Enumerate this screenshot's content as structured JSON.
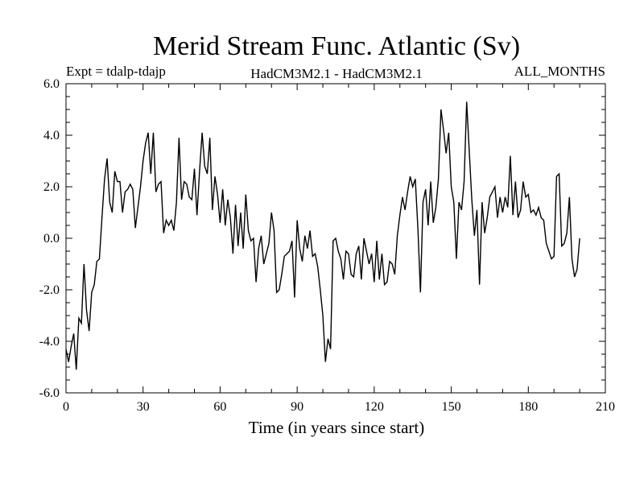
{
  "chart_data": {
    "type": "line",
    "title": "Merid Stream Func. Atlantic (Sv)",
    "subtitle_left": "Expt = tdalp-tdajp",
    "subtitle_center": "HadCM3M2.1 - HadCM3M2.1",
    "subtitle_right": "ALL_MONTHS",
    "xlabel": "Time (in years since start)",
    "ylabel": "",
    "xlim": [
      0,
      210
    ],
    "ylim": [
      -6,
      6
    ],
    "x_ticks": [
      0,
      30,
      60,
      90,
      120,
      150,
      180,
      210
    ],
    "y_ticks": [
      -6,
      -4,
      -2,
      0,
      2,
      4,
      6
    ],
    "y_tick_labels": [
      "-6.0",
      "-4.0",
      "-2.0",
      "0.0",
      "2.0",
      "4.0",
      "6.0"
    ],
    "grid": false,
    "series": [
      {
        "name": "",
        "color": "#000000",
        "x": [
          0,
          1,
          2,
          3,
          4,
          5,
          6,
          7,
          8,
          9,
          10,
          11,
          12,
          13,
          14,
          15,
          16,
          17,
          18,
          19,
          20,
          21,
          22,
          23,
          24,
          25,
          26,
          27,
          28,
          29,
          30,
          31,
          32,
          33,
          34,
          35,
          36,
          37,
          38,
          39,
          40,
          41,
          42,
          43,
          44,
          45,
          46,
          47,
          48,
          49,
          50,
          51,
          52,
          53,
          54,
          55,
          56,
          57,
          58,
          59,
          60,
          61,
          62,
          63,
          64,
          65,
          66,
          67,
          68,
          69,
          70,
          71,
          72,
          73,
          74,
          75,
          76,
          77,
          78,
          79,
          80,
          81,
          82,
          83,
          84,
          85,
          86,
          87,
          88,
          89,
          90,
          91,
          92,
          93,
          94,
          95,
          96,
          97,
          98,
          99,
          100,
          101,
          102,
          103,
          104,
          105,
          106,
          107,
          108,
          109,
          110,
          111,
          112,
          113,
          114,
          115,
          116,
          117,
          118,
          119,
          120,
          121,
          122,
          123,
          124,
          125,
          126,
          127,
          128,
          129,
          130,
          131,
          132,
          133,
          134,
          135,
          136,
          137,
          138,
          139,
          140,
          141,
          142,
          143,
          144,
          145,
          146,
          147,
          148,
          149,
          150,
          151,
          152,
          153,
          154,
          155,
          156,
          157,
          158,
          159,
          160,
          161,
          162,
          163,
          164,
          165,
          166,
          167,
          168,
          169,
          170,
          171,
          172,
          173,
          174,
          175,
          176,
          177,
          178,
          179,
          180,
          181,
          182,
          183,
          184,
          185,
          186,
          187,
          188,
          189,
          190,
          191,
          192,
          193,
          194,
          195,
          196,
          197,
          198,
          199,
          200
        ],
        "y": [
          -4.3,
          -4.8,
          -4.2,
          -3.7,
          -5.1,
          -3.1,
          -3.3,
          -1.0,
          -2.8,
          -3.6,
          -2.1,
          -1.8,
          -0.9,
          -0.8,
          0.8,
          2.3,
          3.1,
          1.4,
          1.0,
          2.6,
          2.2,
          2.2,
          1.0,
          1.8,
          1.9,
          2.1,
          1.9,
          0.4,
          1.2,
          2.0,
          3.0,
          3.7,
          4.1,
          2.5,
          4.1,
          1.8,
          2.1,
          2.2,
          0.2,
          0.7,
          0.5,
          0.7,
          0.3,
          1.4,
          3.9,
          1.5,
          2.2,
          2.1,
          1.6,
          1.5,
          2.7,
          0.9,
          2.6,
          4.1,
          2.8,
          2.5,
          3.9,
          1.1,
          2.4,
          1.7,
          0.6,
          1.9,
          0.5,
          1.5,
          0.8,
          -0.6,
          1.3,
          -0.3,
          1.0,
          -0.4,
          1.7,
          0.3,
          -0.1,
          0.0,
          -1.7,
          -0.4,
          0.1,
          -1.0,
          -0.6,
          -0.2,
          1.0,
          0.3,
          -2.1,
          -2.0,
          -1.4,
          -0.7,
          -0.6,
          -0.5,
          -0.1,
          -2.3,
          0.7,
          -0.4,
          -0.9,
          0.1,
          -0.4,
          0.3,
          -0.7,
          -0.6,
          -1.1,
          -2.0,
          -3.0,
          -4.8,
          -3.9,
          -4.3,
          -0.1,
          0.0,
          -0.5,
          -0.8,
          -1.6,
          -0.5,
          -0.6,
          -1.4,
          -1.5,
          -0.6,
          -0.3,
          -1.6,
          0.0,
          -0.5,
          -1.0,
          -0.6,
          -1.7,
          -0.1,
          -1.6,
          -0.6,
          -1.8,
          -1.7,
          -0.9,
          -1.0,
          -1.4,
          0.1,
          0.9,
          1.6,
          1.1,
          1.8,
          2.4,
          2.0,
          2.3,
          0.4,
          -2.1,
          1.4,
          1.9,
          0.5,
          2.2,
          0.6,
          1.2,
          2.3,
          5.0,
          4.2,
          3.3,
          4.1,
          2.0,
          1.4,
          -0.8,
          1.4,
          1.1,
          2.2,
          5.3,
          3.4,
          1.5,
          0.1,
          1.1,
          -1.8,
          1.4,
          0.2,
          0.8,
          1.6,
          1.8,
          2.0,
          0.8,
          1.6,
          1.0,
          1.6,
          1.2,
          3.2,
          0.9,
          2.2,
          0.8,
          1.1,
          2.2,
          1.6,
          1.7,
          1.0,
          1.1,
          0.9,
          1.2,
          0.8,
          0.7,
          -0.2,
          -0.5,
          -0.8,
          -0.7,
          2.4,
          2.5,
          -0.3,
          -0.2,
          0.2,
          1.6,
          -0.8,
          -1.5,
          -1.2,
          0.0
        ]
      }
    ]
  }
}
